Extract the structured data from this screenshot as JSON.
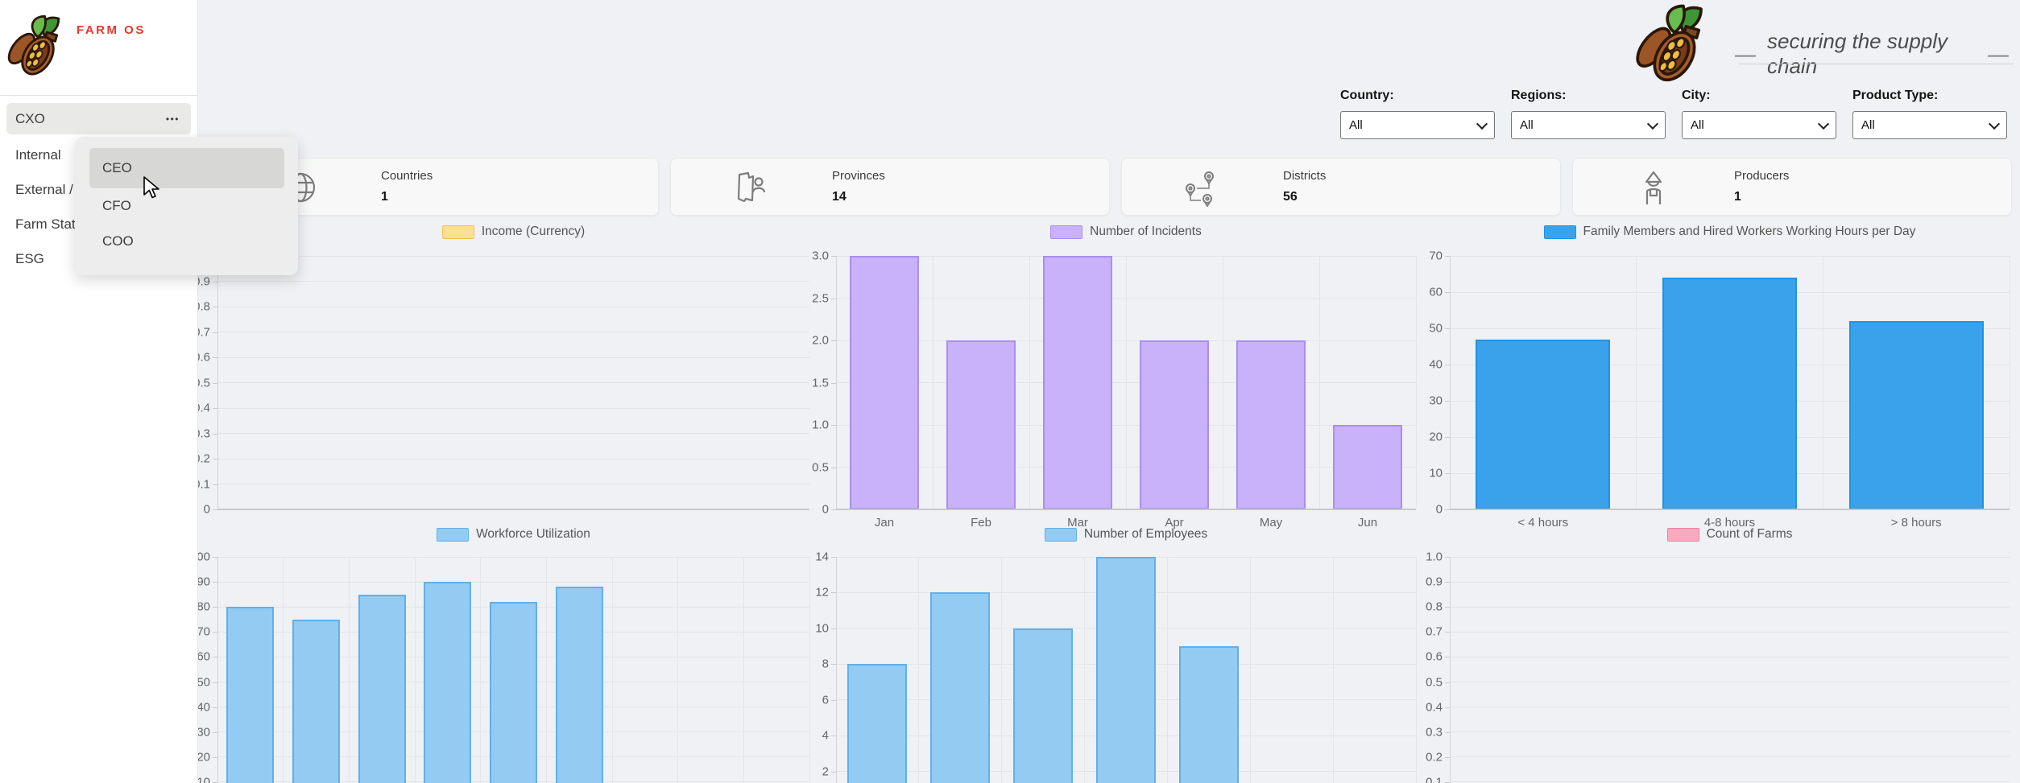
{
  "sidebar": {
    "logo_text": "FARM OS",
    "items": [
      {
        "label": "CXO",
        "selected": true,
        "has_more": true
      },
      {
        "label": "Internal",
        "selected": false,
        "has_more": false
      },
      {
        "label": "External / P",
        "selected": false,
        "has_more": false
      },
      {
        "label": "Farm Stats",
        "selected": false,
        "has_more": false
      },
      {
        "label": "ESG",
        "selected": false,
        "has_more": false
      }
    ],
    "more_glyph": "•••",
    "dropdown": {
      "options": [
        {
          "label": "CEO",
          "highlighted": true
        },
        {
          "label": "CFO",
          "highlighted": false
        },
        {
          "label": "COO",
          "highlighted": false
        }
      ]
    }
  },
  "header": {
    "dash": "—",
    "tagline": "securing the supply chain"
  },
  "filters": [
    {
      "label": "Country:",
      "value": "All"
    },
    {
      "label": "Regions:",
      "value": "All"
    },
    {
      "label": "City:",
      "value": "All"
    },
    {
      "label": "Product Type:",
      "value": "All"
    }
  ],
  "stats": [
    {
      "label": "Countries",
      "value": "1",
      "icon": "globe-icon"
    },
    {
      "label": "Provinces",
      "value": "14",
      "icon": "map-person-icon"
    },
    {
      "label": "Districts",
      "value": "56",
      "icon": "map-pins-icon"
    },
    {
      "label": "Producers",
      "value": "1",
      "icon": "farmer-icon"
    }
  ],
  "chart_data": [
    {
      "id": "income",
      "type": "bar",
      "title": "Income (Currency)",
      "categories": [],
      "values": [],
      "ylim": [
        0,
        1.0
      ],
      "ytick_step": 0.1,
      "tick_format": "dec1",
      "slots": 0,
      "show_x_labels": false,
      "legend_position": "top",
      "grid": true,
      "colors": {
        "fill": "#fbdf92",
        "border": "#edc25e"
      }
    },
    {
      "id": "incidents",
      "type": "bar",
      "title": "Number of Incidents",
      "categories": [
        "Jan",
        "Feb",
        "Mar",
        "Apr",
        "May",
        "Jun"
      ],
      "values": [
        3,
        2,
        3,
        2,
        2,
        1
      ],
      "ylim": [
        0,
        3.0
      ],
      "ytick_step": 0.5,
      "tick_format": "dec1",
      "slots": 6,
      "show_x_labels": true,
      "legend_position": "top",
      "grid": true,
      "colors": {
        "fill": "#c9b2f9",
        "border": "#a98ef2"
      }
    },
    {
      "id": "working-hours",
      "type": "bar",
      "title": "Family Members and Hired Workers Working Hours per Day",
      "categories": [
        "< 4 hours",
        "4-8 hours",
        "> 8 hours"
      ],
      "values": [
        47,
        64,
        52
      ],
      "ylim": [
        0,
        70
      ],
      "ytick_step": 10,
      "tick_format": "int",
      "slots": 3,
      "show_x_labels": true,
      "legend_position": "top",
      "grid": true,
      "colors": {
        "fill": "#3aa2eb",
        "border": "#1f93e3"
      }
    },
    {
      "id": "workforce-utilization",
      "type": "bar",
      "title": "Workforce Utilization",
      "categories": [],
      "values": [
        80,
        75,
        85,
        90,
        82,
        88
      ],
      "ylim": [
        0,
        100
      ],
      "ytick_step": 10,
      "tick_format": "int",
      "slots": 9,
      "show_x_labels": false,
      "legend_position": "top",
      "grid": true,
      "colors": {
        "fill": "#93cbf3",
        "border": "#60b0ea"
      }
    },
    {
      "id": "employees",
      "type": "bar",
      "title": "Number of Employees",
      "categories": [],
      "values": [
        8,
        12,
        10,
        14,
        9
      ],
      "ylim": [
        0,
        14
      ],
      "ytick_step": 2,
      "tick_format": "int",
      "slots": 7,
      "show_x_labels": false,
      "legend_position": "top",
      "grid": true,
      "colors": {
        "fill": "#93cbf3",
        "border": "#60b0ea"
      }
    },
    {
      "id": "farm-count",
      "type": "bar",
      "title": "Count of Farms",
      "categories": [],
      "values": [],
      "ylim": [
        0,
        1.0
      ],
      "ytick_step": 0.1,
      "tick_format": "dec1",
      "slots": 0,
      "show_x_labels": false,
      "legend_position": "top",
      "grid": true,
      "colors": {
        "fill": "#f9aabe",
        "border": "#f27ea1"
      }
    }
  ]
}
